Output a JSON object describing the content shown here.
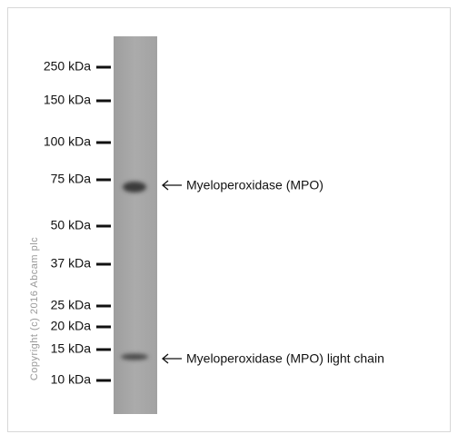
{
  "markers": [
    "250 kDa",
    "150 kDa",
    "100 kDa",
    "75 kDa",
    "50 kDa",
    "37 kDa",
    "25 kDa",
    "20 kDa",
    "15 kDa",
    "10 kDa"
  ],
  "bands": [
    "Myeloperoxidase (MPO)",
    "Myeloperoxidase (MPO) light chain"
  ],
  "copyright": "Copyright (c) 2016 Abcam plc"
}
